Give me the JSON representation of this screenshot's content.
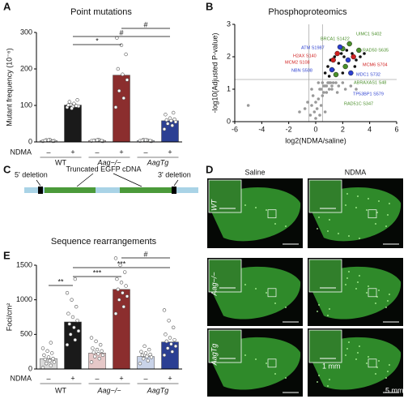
{
  "panels": [
    "A",
    "B",
    "C",
    "D",
    "E"
  ],
  "chart_data": [
    {
      "type": "bar",
      "title": "Point mutations",
      "y_label": "Mutant frequency (10⁻⁶)",
      "treatment_label": "NDMA",
      "treatments": [
        "–",
        "+"
      ],
      "groups": [
        "WT",
        "Aag−/−",
        "AagTg"
      ],
      "values": [
        4,
        101,
        4,
        183,
        4,
        58
      ],
      "colors": [
        "#d9d9d9",
        "#1a1a1a",
        "#e6c8c8",
        "#8b2e2e",
        "#c9d3e8",
        "#2b3f93"
      ],
      "points": [
        [
          2,
          4,
          5,
          3,
          6,
          4,
          2,
          5
        ],
        [
          95,
          100,
          102,
          98,
          105,
          110,
          115,
          97,
          101,
          99,
          92
        ],
        [
          3,
          5,
          4,
          2,
          6,
          4,
          3,
          5
        ],
        [
          95,
          120,
          140,
          170,
          185,
          200,
          240,
          265,
          285
        ],
        [
          3,
          4,
          6,
          2,
          5,
          4,
          3,
          5
        ],
        [
          35,
          45,
          50,
          55,
          58,
          60,
          62,
          65,
          75,
          80
        ]
      ],
      "brackets": [
        {
          "between": [
            1,
            3
          ],
          "label": "*"
        },
        {
          "between": [
            1,
            5
          ],
          "label": "#"
        },
        {
          "between": [
            3,
            5
          ],
          "label": "#"
        }
      ],
      "ylim": [
        0,
        300
      ],
      "yticks": [
        0,
        100,
        200,
        300
      ]
    },
    {
      "type": "scatter",
      "title": "Phosphoproteomics",
      "x_label": "log2(NDMA/saline)",
      "y_label": "-log10(Adjusted P-value)",
      "xlim": [
        -6,
        6
      ],
      "ylim": [
        0,
        3
      ],
      "xticks": [
        -6,
        -4,
        -2,
        0,
        2,
        4,
        6
      ],
      "yticks": [
        0,
        1,
        2,
        3
      ],
      "reference_lines": {
        "x": [
          -0.5,
          0.5
        ],
        "y": [
          1.3
        ]
      },
      "series": [
        {
          "color": "#999999",
          "x": [
            -5,
            -1.2,
            -0.8,
            -0.6,
            -0.4,
            -0.3,
            -0.2,
            -0.1,
            0,
            0.1,
            0.2,
            0.3,
            0.4,
            0.5,
            0.6,
            0.7,
            0.8,
            0.9,
            1.0,
            1.1,
            1.2,
            1.3,
            1.5,
            1.7,
            2.0,
            0.2,
            0.4,
            0.6,
            0.8,
            1.0,
            -0.3,
            0.0,
            0.3,
            0.5,
            0.7,
            1.2,
            1.6,
            2.2,
            2.6,
            3.0
          ],
          "y": [
            0.5,
            0.3,
            0.4,
            0.6,
            0.2,
            0.5,
            0.8,
            0.3,
            0.1,
            0.4,
            0.7,
            1.0,
            0.5,
            1.2,
            0.9,
            1.1,
            1.1,
            1.2,
            1.0,
            1.2,
            1.1,
            1.2,
            1.2,
            1.1,
            1.2,
            1.2,
            1.0,
            1.1,
            0.9,
            1.2,
            1.0,
            0.6,
            0.2,
            0.8,
            0.3,
            1.0,
            0.9,
            1.0,
            1.1,
            1.0
          ]
        },
        {
          "color": "#111111",
          "x": [
            0.7,
            0.9,
            1.1,
            1.4,
            1.7,
            1.9,
            2.1,
            2.3,
            2.7,
            3.0,
            3.3,
            3.6,
            1.0,
            1.3,
            2.0,
            2.9
          ],
          "y": [
            1.5,
            1.7,
            1.9,
            2.0,
            1.8,
            2.1,
            2.0,
            2.2,
            2.1,
            1.9,
            2.0,
            2.1,
            1.4,
            1.6,
            1.5,
            1.7
          ]
        }
      ],
      "labeled_points": [
        {
          "label": "BRCA1 S1422",
          "color": "#4a8f2a",
          "x": 2.0,
          "y": 2.25
        },
        {
          "label": "UIMC1 S402",
          "color": "#4a8f2a",
          "x": 2.5,
          "y": 2.4
        },
        {
          "label": "ATM S1987",
          "color": "#2b3fd0",
          "x": 1.8,
          "y": 2.3
        },
        {
          "label": "RAD50 S635",
          "color": "#4a8f2a",
          "x": 3.2,
          "y": 2.2
        },
        {
          "label": "H2AX S140",
          "color": "#d02020",
          "x": 1.6,
          "y": 2.1
        },
        {
          "label": "MCM2 S108",
          "color": "#d02020",
          "x": 1.3,
          "y": 1.9
        },
        {
          "label": "MCM6 S704",
          "color": "#d02020",
          "x": 2.8,
          "y": 2.0
        },
        {
          "label": "NBN S508",
          "color": "#2b3fd0",
          "x": 1.2,
          "y": 1.6
        },
        {
          "label": "MDC1 S732",
          "color": "#2b3fd0",
          "x": 2.4,
          "y": 1.9
        },
        {
          "label": "ABRAXAS1 S48",
          "color": "#4a8f2a",
          "x": 2.2,
          "y": 1.7
        },
        {
          "label": "TP53BP1 S579",
          "color": "#2b3fd0",
          "x": 2.6,
          "y": 1.5
        },
        {
          "label": "RAD51C S347",
          "color": "#4a8f2a",
          "x": 1.5,
          "y": 1.45
        }
      ]
    },
    {
      "type": "bar",
      "title": "Sequence rearrangements",
      "y_label": "Foci/cm²",
      "treatment_label": "NDMA",
      "treatments": [
        "–",
        "+"
      ],
      "groups": [
        "WT",
        "Aag−/−",
        "AagTg"
      ],
      "values": [
        150,
        680,
        230,
        1150,
        180,
        390
      ],
      "colors": [
        "#d9d9d9",
        "#1a1a1a",
        "#e6c8c8",
        "#8b2e2e",
        "#c9d3e8",
        "#2b3f93"
      ],
      "points": [
        [
          20,
          50,
          80,
          100,
          120,
          140,
          150,
          170,
          200,
          230,
          260,
          300,
          380
        ],
        [
          350,
          420,
          500,
          550,
          600,
          650,
          700,
          750,
          800,
          900,
          1000,
          1100,
          1300
        ],
        [
          100,
          150,
          180,
          200,
          220,
          240,
          260,
          280,
          300,
          350,
          400,
          450
        ],
        [
          800,
          900,
          1000,
          1050,
          1100,
          1150,
          1200,
          1250,
          1300,
          1400,
          1500,
          1600
        ],
        [
          80,
          120,
          150,
          170,
          180,
          200,
          210,
          230,
          250,
          280,
          330
        ],
        [
          200,
          250,
          300,
          330,
          360,
          400,
          420,
          450,
          500,
          600,
          700,
          850
        ]
      ],
      "brackets": [
        {
          "between": [
            0,
            1
          ],
          "label": "**"
        },
        {
          "between": [
            1,
            3
          ],
          "label": "***"
        },
        {
          "between": [
            1,
            5
          ],
          "label": "***"
        },
        {
          "between": [
            3,
            5
          ],
          "label": "#"
        }
      ],
      "ylim": [
        0,
        1500
      ],
      "yticks": [
        0,
        500,
        1000,
        1500
      ]
    }
  ],
  "diagram": {
    "left": "5' deletion",
    "middle": "Truncated EGFP cDNA",
    "right": "3' deletion"
  },
  "micrographs": {
    "columns": [
      "Saline",
      "NDMA"
    ],
    "rows": [
      "WT",
      "Aag−/−",
      "AagTg"
    ],
    "inset_scale": "1 mm",
    "scale": "5 mm"
  }
}
